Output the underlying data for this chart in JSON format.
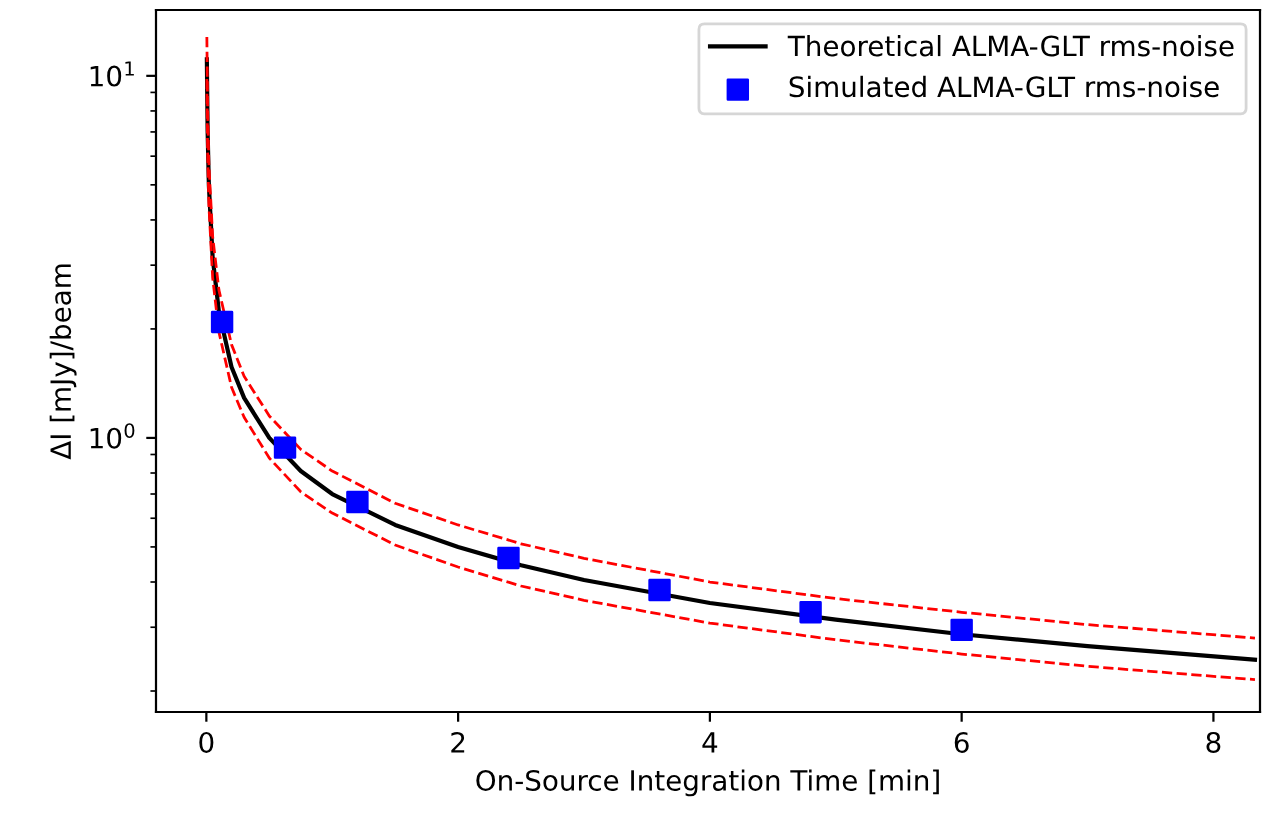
{
  "chart_data": {
    "type": "line",
    "xlabel": "On-Source Integration Time [min]",
    "ylabel": "ΔI [mJy]/beam",
    "log": "y",
    "legend": "top right",
    "grid": false,
    "xlim": [
      -0.4,
      8.37
    ],
    "xticks": [
      0,
      2,
      4,
      6,
      8
    ],
    "ylim": [
      0.175,
      15.2
    ],
    "yticks": [
      {
        "value": 1,
        "label": "10$^{0}$"
      },
      {
        "value": 10,
        "label": "10$^{1}$"
      }
    ],
    "series": [
      {
        "name": "Theoretical ALMA-GLT rms-noise",
        "color": "#000000",
        "line_style": "solid",
        "marker": "none",
        "x": [
          0.004,
          0.01,
          0.02,
          0.05,
          0.1,
          0.2,
          0.3,
          0.5,
          0.75,
          1,
          1.5,
          2,
          2.5,
          3,
          4,
          5,
          6,
          7,
          8.33
        ],
        "values": [
          11.1,
          7.04,
          4.98,
          3.15,
          2.23,
          1.57,
          1.29,
          1.0,
          0.81,
          0.7,
          0.575,
          0.5,
          0.445,
          0.405,
          0.35,
          0.315,
          0.287,
          0.266,
          0.244
        ]
      },
      {
        "color": "#ff0000",
        "line_style": "dashed",
        "marker": "none",
        "x": [
          0.004,
          0.01,
          0.02,
          0.05,
          0.1,
          0.2,
          0.3,
          0.5,
          0.75,
          1,
          1.5,
          2,
          2.5,
          3,
          4,
          5,
          6,
          7,
          8.33
        ],
        "values": [
          12.8,
          8.1,
          5.7,
          3.6,
          2.56,
          1.81,
          1.48,
          1.15,
          0.93,
          0.81,
          0.66,
          0.575,
          0.51,
          0.465,
          0.4,
          0.36,
          0.33,
          0.305,
          0.28
        ]
      },
      {
        "color": "#ff0000",
        "line_style": "dashed",
        "marker": "none",
        "x": [
          0.004,
          0.01,
          0.02,
          0.05,
          0.1,
          0.2,
          0.3,
          0.5,
          0.75,
          1,
          1.5,
          2,
          2.5,
          3,
          4,
          5,
          6,
          7,
          8.33
        ],
        "values": [
          9.8,
          6.2,
          4.4,
          2.77,
          1.96,
          1.38,
          1.14,
          0.88,
          0.71,
          0.62,
          0.506,
          0.44,
          0.39,
          0.356,
          0.308,
          0.277,
          0.253,
          0.234,
          0.215
        ]
      },
      {
        "name": "Simulated ALMA-GLT rms-noise",
        "type": "scatter",
        "color": "#0000ff",
        "marker": "square",
        "x": [
          0.125,
          0.625,
          1.2,
          2.4,
          3.6,
          4.8,
          6.0
        ],
        "values": [
          2.09,
          0.94,
          0.665,
          0.466,
          0.38,
          0.33,
          0.295
        ]
      }
    ]
  }
}
